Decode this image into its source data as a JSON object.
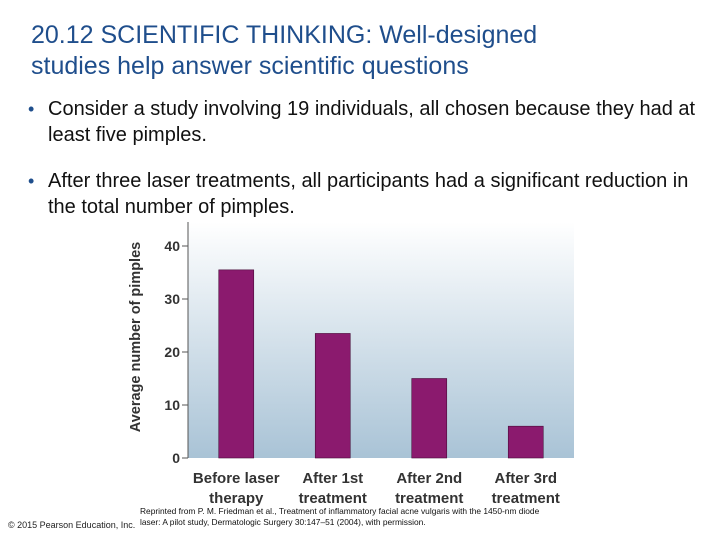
{
  "slide": {
    "title_line1": "20.12 SCIENTIFIC THINKING: Well-designed",
    "title_line2": "studies help answer scientific questions",
    "bullets": [
      {
        "text": "Consider a study involving 19 individuals, all chosen because they had at least five pimples."
      },
      {
        "text": "After three laser treatments, all participants had a significant reduction in the total number of pimples."
      }
    ],
    "bullet_glyph": "•",
    "copyright": "© 2015 Pearson Education, Inc.",
    "credit_line1": "Reprinted from P. M. Friedman et al., Treatment of inflammatory facial acne vulgaris with the 1450-nm diode",
    "credit_line2": "laser: A pilot study, Dermatologic Surgery 30:147–51 (2004), with permission."
  },
  "colors": {
    "title": "#1f4e8c",
    "bar": "#8b1a6e",
    "plot_top": "#ffffff",
    "plot_bottom": "#a9c3d6"
  },
  "chart_data": {
    "type": "bar",
    "categories": [
      [
        "Before laser",
        "therapy"
      ],
      [
        "After 1st",
        "treatment"
      ],
      [
        "After 2nd",
        "treatment"
      ],
      [
        "After 3rd",
        "treatment"
      ]
    ],
    "values": [
      35.5,
      23.5,
      15,
      6
    ],
    "ylabel": "Average number of pimples",
    "yticks": [
      0,
      10,
      20,
      30,
      40
    ],
    "ylim": [
      0,
      40
    ],
    "grid": false
  }
}
